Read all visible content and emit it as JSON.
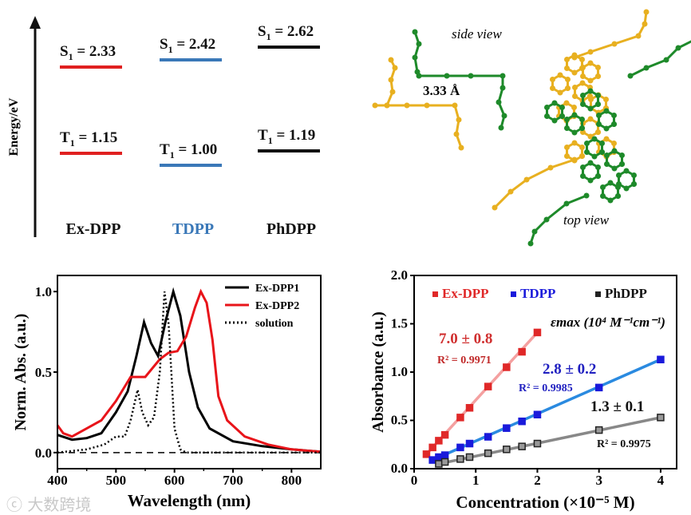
{
  "energy_diagram": {
    "ylabel": "Energy/eV",
    "molecules": [
      {
        "name": "Ex-DPP",
        "color": "#e02020",
        "name_color": "#111111",
        "S1": "= 2.33",
        "T1": "= 1.15",
        "S": "S",
        "T": "T",
        "sub": "1"
      },
      {
        "name": "TDPP",
        "color": "#3a78b8",
        "name_color": "#3a78b8",
        "S1": "= 2.42",
        "T1": "= 1.00",
        "S": "S",
        "T": "T",
        "sub": "1"
      },
      {
        "name": "PhDPP",
        "color": "#111111",
        "name_color": "#111111",
        "S1": "= 2.62",
        "T1": "= 1.19",
        "S": "S",
        "T": "T",
        "sub": "1"
      }
    ]
  },
  "structure": {
    "side_label": "side view",
    "top_label": "top view",
    "distance": "3.33 Å"
  },
  "watermark": "大数跨境",
  "chart_data": [
    {
      "type": "line",
      "title": "",
      "xlabel": "Wavelength (nm)",
      "ylabel": "Norm. Abs. (a.u.)",
      "xlim": [
        400,
        850
      ],
      "ylim": [
        -0.1,
        1.1
      ],
      "xticks": [
        400,
        500,
        600,
        700,
        800
      ],
      "yticks": [
        "0.0",
        "0.5",
        "1.0"
      ],
      "ytick_values": [
        0,
        0.5,
        1.0
      ],
      "legend_position": "top-right",
      "series": [
        {
          "name": "Ex-DPP1",
          "color": "#000000",
          "style": "solid",
          "x": [
            400,
            425,
            450,
            475,
            500,
            520,
            535,
            548,
            560,
            572,
            585,
            598,
            610,
            625,
            640,
            660,
            700,
            750,
            800,
            850
          ],
          "y": [
            0.11,
            0.08,
            0.09,
            0.12,
            0.25,
            0.38,
            0.6,
            0.81,
            0.68,
            0.6,
            0.82,
            1.0,
            0.85,
            0.5,
            0.28,
            0.15,
            0.07,
            0.04,
            0.02,
            0.005
          ]
        },
        {
          "name": "Ex-DPP2",
          "color": "#e8141a",
          "style": "solid",
          "x": [
            400,
            410,
            425,
            450,
            475,
            500,
            525,
            550,
            575,
            590,
            605,
            620,
            635,
            645,
            655,
            665,
            675,
            690,
            720,
            760,
            800,
            850
          ],
          "y": [
            0.17,
            0.12,
            0.1,
            0.15,
            0.2,
            0.32,
            0.47,
            0.47,
            0.58,
            0.62,
            0.63,
            0.72,
            0.9,
            1.0,
            0.93,
            0.7,
            0.35,
            0.2,
            0.1,
            0.05,
            0.02,
            0.005
          ]
        },
        {
          "name": "solution",
          "color": "#000000",
          "style": "dotted",
          "x": [
            400,
            450,
            480,
            500,
            515,
            525,
            537,
            545,
            555,
            565,
            575,
            583,
            590,
            600,
            610,
            620,
            700,
            850
          ],
          "y": [
            0.0,
            0.02,
            0.05,
            0.1,
            0.1,
            0.2,
            0.39,
            0.25,
            0.17,
            0.22,
            0.5,
            1.0,
            0.8,
            0.15,
            0.02,
            0.0,
            0.0,
            0.0
          ]
        }
      ]
    },
    {
      "type": "scatter",
      "title": "",
      "xlabel": "Concentration (×10⁻⁵ M)",
      "ylabel": "Absorbance (a.u.)",
      "xlim": [
        0,
        4.26
      ],
      "ylim": [
        0,
        2.0
      ],
      "xticks": [
        0,
        1,
        2,
        3,
        4
      ],
      "yticks": [
        "0.0",
        "0.5",
        "1.0",
        "1.5",
        "2.0"
      ],
      "ytick_values": [
        0,
        0.5,
        1.0,
        1.5,
        2.0
      ],
      "legend_position": "top",
      "epsilon_label": "εmax (10⁴ M⁻¹cm⁻¹)",
      "series": [
        {
          "name": "Ex-DPP",
          "marker_color": "#e02828",
          "line_color": "#f4a0a0",
          "epsilon": "7.0 ± 0.8",
          "r2": "R² = 0.9971",
          "x": [
            0.2,
            0.3,
            0.4,
            0.5,
            0.75,
            0.9,
            1.2,
            1.5,
            1.75,
            2.0
          ],
          "y": [
            0.15,
            0.22,
            0.29,
            0.35,
            0.53,
            0.63,
            0.85,
            1.05,
            1.21,
            1.41
          ]
        },
        {
          "name": "TDPP",
          "marker_color": "#1a1adb",
          "line_color": "#2a8ae0",
          "epsilon": "2.8 ± 0.2",
          "r2": "R² = 0.9985",
          "x": [
            0.3,
            0.4,
            0.5,
            0.75,
            0.9,
            1.2,
            1.5,
            1.75,
            2.0,
            3.0,
            4.0
          ],
          "y": [
            0.09,
            0.12,
            0.14,
            0.22,
            0.26,
            0.33,
            0.42,
            0.49,
            0.56,
            0.84,
            1.13
          ]
        },
        {
          "name": "PhDPP",
          "marker_color": "#222222",
          "line_color": "#888888",
          "epsilon": "1.3 ± 0.1",
          "r2": "R² = 0.9975",
          "x": [
            0.4,
            0.5,
            0.75,
            0.9,
            1.2,
            1.5,
            1.75,
            2.0,
            3.0,
            4.0
          ],
          "y": [
            0.05,
            0.07,
            0.1,
            0.12,
            0.16,
            0.2,
            0.23,
            0.26,
            0.4,
            0.53
          ]
        }
      ]
    }
  ]
}
